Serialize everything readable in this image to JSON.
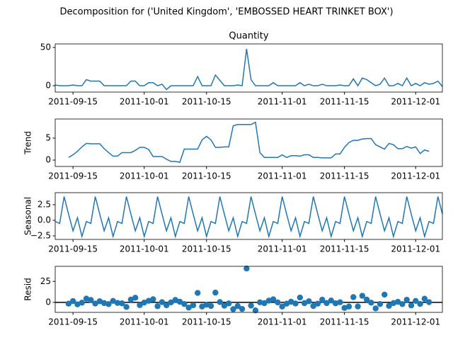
{
  "title": "Decomposition for ('United Kingdom', 'EMBOSSED HEART TRINKET BOX')",
  "x": [
    "2011-09-11",
    "2011-09-12",
    "2011-09-13",
    "2011-09-14",
    "2011-09-15",
    "2011-09-16",
    "2011-09-17",
    "2011-09-18",
    "2011-09-19",
    "2011-09-20",
    "2011-09-21",
    "2011-09-22",
    "2011-09-23",
    "2011-09-24",
    "2011-09-25",
    "2011-09-26",
    "2011-09-27",
    "2011-09-28",
    "2011-09-29",
    "2011-09-30",
    "2011-10-01",
    "2011-10-02",
    "2011-10-03",
    "2011-10-04",
    "2011-10-05",
    "2011-10-06",
    "2011-10-07",
    "2011-10-08",
    "2011-10-09",
    "2011-10-10",
    "2011-10-11",
    "2011-10-12",
    "2011-10-13",
    "2011-10-14",
    "2011-10-15",
    "2011-10-16",
    "2011-10-17",
    "2011-10-18",
    "2011-10-19",
    "2011-10-20",
    "2011-10-21",
    "2011-10-22",
    "2011-10-23",
    "2011-10-24",
    "2011-10-25",
    "2011-10-26",
    "2011-10-27",
    "2011-10-28",
    "2011-10-29",
    "2011-10-30",
    "2011-10-31",
    "2011-11-01",
    "2011-11-02",
    "2011-11-03",
    "2011-11-04",
    "2011-11-05",
    "2011-11-06",
    "2011-11-07",
    "2011-11-08",
    "2011-11-09",
    "2011-11-10",
    "2011-11-11",
    "2011-11-12",
    "2011-11-13",
    "2011-11-14",
    "2011-11-15",
    "2011-11-16",
    "2011-11-17",
    "2011-11-18",
    "2011-11-19",
    "2011-11-20",
    "2011-11-21",
    "2011-11-22",
    "2011-11-23",
    "2011-11-24",
    "2011-11-25",
    "2011-11-26",
    "2011-11-27",
    "2011-11-28",
    "2011-11-29",
    "2011-11-30",
    "2011-12-01",
    "2011-12-02",
    "2011-12-03",
    "2011-12-04",
    "2011-12-05",
    "2011-12-06",
    "2011-12-07"
  ],
  "xlim": [
    "2011-09-11",
    "2011-12-07"
  ],
  "xticks": [
    "2011-09-15",
    "2011-10-01",
    "2011-10-15",
    "2011-11-01",
    "2011-11-15",
    "2011-12-01"
  ],
  "chart_data": [
    {
      "type": "line",
      "title": "Quantity",
      "color": "#1f77b4",
      "ylim": [
        -8.3,
        54.6
      ],
      "yticks": [
        0,
        50
      ],
      "values": [
        1,
        0,
        0,
        0,
        1,
        0,
        0,
        8,
        6,
        6,
        6,
        0,
        0,
        0,
        0,
        0,
        0,
        6,
        6,
        0,
        0,
        4,
        4,
        0,
        2,
        -5,
        0,
        0,
        0,
        0,
        0,
        0,
        12,
        0,
        0,
        0,
        14,
        7,
        0,
        0,
        0,
        1,
        0,
        48,
        8,
        0,
        0,
        0,
        0,
        4,
        0,
        0,
        0,
        0,
        0,
        4,
        0,
        2,
        0,
        0,
        2,
        0,
        0,
        0,
        1,
        0,
        0,
        9,
        0,
        10,
        8,
        4,
        0,
        2,
        10,
        0,
        0,
        3,
        0,
        10,
        0,
        3,
        0,
        4,
        2,
        3,
        6,
        -1
      ]
    },
    {
      "type": "line",
      "ylabel": "Trend",
      "color": "#1f77b4",
      "ylim": [
        -1.45,
        9.35
      ],
      "yticks": [
        0,
        5
      ],
      "values": [
        null,
        null,
        null,
        0.6,
        1.2,
        2,
        3,
        3.8,
        3.7,
        3.7,
        3.7,
        2.6,
        1.7,
        0.9,
        0.9,
        1.7,
        1.7,
        1.7,
        2.2,
        2.9,
        2.9,
        2.4,
        0.8,
        0.8,
        0.8,
        0.2,
        -0.3,
        -0.3,
        -0.5,
        2.5,
        2.5,
        2.5,
        2.5,
        4.6,
        5.4,
        4.6,
        2.9,
        2.9,
        3,
        3,
        7.8,
        8.1,
        8.1,
        8.1,
        8.1,
        8.6,
        1.7,
        0.6,
        0.6,
        0.6,
        0.6,
        1.2,
        0.6,
        1,
        1,
        0.9,
        1.2,
        1.2,
        0.6,
        0.6,
        0.5,
        0.5,
        0.5,
        1.4,
        1.4,
        2.9,
        4,
        4.5,
        4.5,
        4.8,
        4.9,
        4.9,
        3.5,
        3,
        2.5,
        3.8,
        3.5,
        2.6,
        2.6,
        3.1,
        2.7,
        3,
        1.5,
        2.3,
        2,
        null,
        null,
        null
      ]
    },
    {
      "type": "line",
      "ylabel": "Seasonal",
      "color": "#1f77b4",
      "ylim": [
        -3.07,
        4.43
      ],
      "yticks": [
        {
          "value": -2.5,
          "label": "−2.5"
        },
        {
          "value": 0,
          "label": "0.0"
        },
        2.5
      ],
      "values": [
        -0.2,
        -0.5,
        3.8,
        1,
        -1.7,
        0.4,
        -2.6,
        -0.2,
        -0.5,
        3.8,
        1,
        -1.7,
        0.4,
        -2.6,
        -0.2,
        -0.5,
        3.8,
        1,
        -1.7,
        0.4,
        -2.6,
        -0.2,
        -0.5,
        3.8,
        1,
        -1.7,
        0.4,
        -2.6,
        -0.2,
        -0.5,
        3.8,
        1,
        -1.7,
        0.4,
        -2.6,
        -0.2,
        -0.5,
        3.8,
        1,
        -1.7,
        0.4,
        -2.6,
        -0.2,
        -0.5,
        3.8,
        1,
        -1.7,
        0.4,
        -2.6,
        -0.2,
        -0.5,
        3.8,
        1,
        -1.7,
        0.4,
        -2.6,
        -0.2,
        -0.5,
        3.8,
        1,
        -1.7,
        0.4,
        -2.6,
        -0.2,
        -0.5,
        3.8,
        1,
        -1.7,
        0.4,
        -2.6,
        -0.2,
        -0.5,
        3.8,
        1,
        -1.7,
        0.4,
        -2.6,
        -0.2,
        -0.5,
        3.8,
        1,
        -1.7,
        0.4,
        -2.6,
        -0.2,
        -0.5,
        3.8,
        1
      ]
    },
    {
      "type": "scatter",
      "ylabel": "Resid",
      "color": "#1f77b4",
      "ylim": [
        -12,
        43
      ],
      "yticks": [
        0,
        25
      ],
      "values": [
        null,
        null,
        null,
        -1.6,
        1.5,
        -2.4,
        -0.4,
        4.4,
        2.8,
        -1.5,
        1.3,
        -0.9,
        -2.1,
        1.7,
        -0.7,
        -1.2,
        -5.5,
        3.3,
        5.5,
        -3.3,
        -0.3,
        1.8,
        3.7,
        -4.6,
        0.2,
        -3.5,
        -0.1,
        2.9,
        0.7,
        -2,
        -6.3,
        -3.5,
        11.2,
        -5,
        -2.8,
        -4.4,
        11.6,
        0.3,
        -4,
        -1.3,
        -8.2,
        -4.5,
        -7.9,
        40.4,
        -3.9,
        -9.6,
        0,
        -1,
        2,
        3.6,
        -0.1,
        -5,
        -1.6,
        0.7,
        -1.4,
        5.7,
        -1,
        1.3,
        -4.4,
        -1.6,
        3.2,
        -0.9,
        2.1,
        -1.2,
        0.1,
        -6.7,
        -5,
        6.2,
        -4.9,
        7.8,
        3.3,
        -0.4,
        -7.3,
        -2,
        9.2,
        -4.2,
        -0.9,
        0.6,
        -2.1,
        3.1,
        -3.7,
        1.7,
        -1.9,
        4.3,
        0.2,
        null,
        null,
        null
      ]
    }
  ]
}
